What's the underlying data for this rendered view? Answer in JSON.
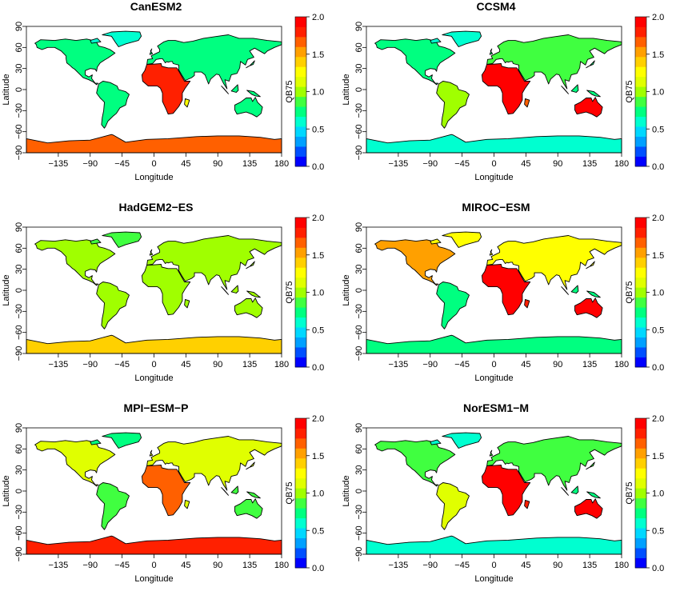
{
  "axis_labels": {
    "x": "Longitude",
    "y": "Latitude",
    "colorbar": "QB75"
  },
  "x_ticks": [
    "−135",
    "−90",
    "−45",
    "0",
    "45",
    "90",
    "135",
    "180"
  ],
  "y_ticks": [
    "90",
    "60",
    "30",
    "0",
    "−30",
    "−60",
    "−90"
  ],
  "colorbar_ticks": [
    "2.0",
    "1.5",
    "1.0",
    "0.5",
    "0.0"
  ],
  "colors": {
    "scale": [
      "#0000ff",
      "#0050ff",
      "#00a0ff",
      "#00d8ff",
      "#00ffd0",
      "#00ff80",
      "#40ff40",
      "#a0ff00",
      "#e0ff00",
      "#ffff00",
      "#ffd000",
      "#ffa000",
      "#ff6000",
      "#ff2000",
      "#ff0000"
    ],
    "coast": "#000000"
  },
  "chart_data": [
    {
      "type": "heatmap",
      "title": "CanESM2",
      "xlabel": "Longitude",
      "ylabel": "Latitude",
      "colorbar_label": "QB75",
      "xlim": [
        -180,
        180
      ],
      "ylim": [
        -90,
        90
      ],
      "clim": [
        0.0,
        2.0
      ]
    },
    {
      "type": "heatmap",
      "title": "CCSM4",
      "xlabel": "Longitude",
      "ylabel": "Latitude",
      "colorbar_label": "QB75",
      "xlim": [
        -180,
        180
      ],
      "ylim": [
        -90,
        90
      ],
      "clim": [
        0.0,
        2.0
      ]
    },
    {
      "type": "heatmap",
      "title": "HadGEM2−ES",
      "xlabel": "Longitude",
      "ylabel": "Latitude",
      "colorbar_label": "QB75",
      "xlim": [
        -180,
        180
      ],
      "ylim": [
        -90,
        90
      ],
      "clim": [
        0.0,
        2.0
      ]
    },
    {
      "type": "heatmap",
      "title": "MIROC−ESM",
      "xlabel": "Longitude",
      "ylabel": "Latitude",
      "colorbar_label": "QB75",
      "xlim": [
        -180,
        180
      ],
      "ylim": [
        -90,
        90
      ],
      "clim": [
        0.0,
        2.0
      ]
    },
    {
      "type": "heatmap",
      "title": "MPI−ESM−P",
      "xlabel": "Longitude",
      "ylabel": "Latitude",
      "colorbar_label": "QB75",
      "xlim": [
        -180,
        180
      ],
      "ylim": [
        -90,
        90
      ],
      "clim": [
        0.0,
        2.0
      ]
    },
    {
      "type": "heatmap",
      "title": "NorESM1−M",
      "xlabel": "Longitude",
      "ylabel": "Latitude",
      "colorbar_label": "QB75",
      "xlim": [
        -180,
        180
      ],
      "ylim": [
        -90,
        90
      ],
      "clim": [
        0.0,
        2.0
      ]
    }
  ]
}
